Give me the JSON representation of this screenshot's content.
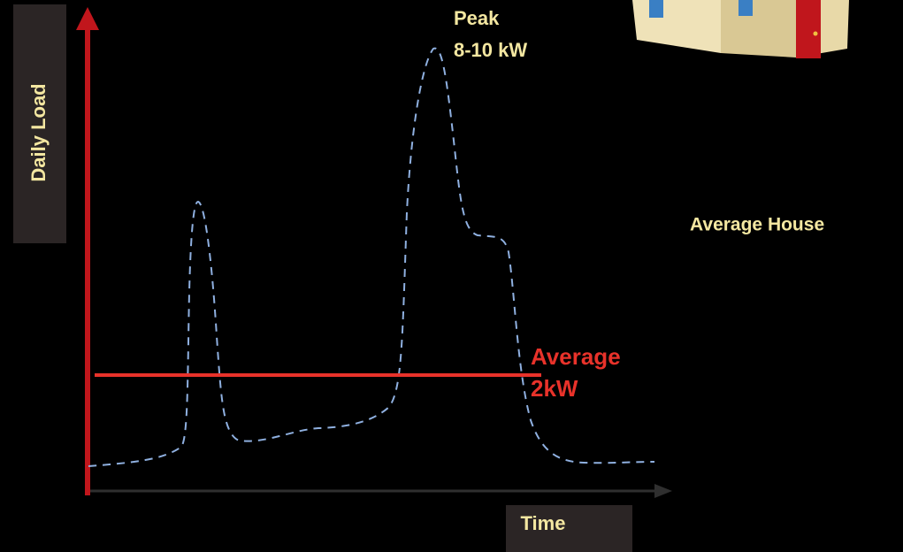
{
  "y_axis_label": "Daily Load",
  "x_axis_label": "Time",
  "peak": {
    "title": "Peak",
    "value": "8-10 kW"
  },
  "average": {
    "title": "Average",
    "value": "2kW"
  },
  "house_label": "Average House"
}
